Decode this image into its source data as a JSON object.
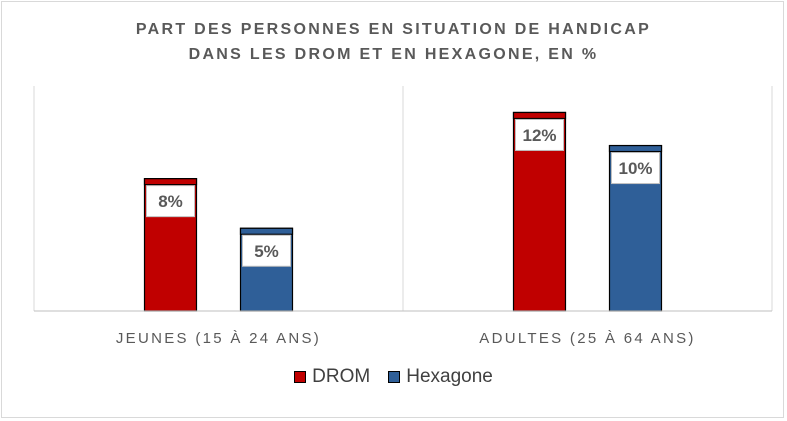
{
  "chart_data": {
    "type": "bar",
    "title": "PART DES PERSONNES EN SITUATION DE HANDICAP",
    "subtitle": "DANS LES DROM ET EN HEXAGONE, EN %",
    "categories": [
      "JEUNES (15 À 24 ANS)",
      "ADULTES (25 À 64 ANS)"
    ],
    "series": [
      {
        "name": "DROM",
        "values": [
          8,
          12
        ],
        "labels": [
          "8%",
          "12%"
        ],
        "color": "#C00000"
      },
      {
        "name": "Hexagone",
        "values": [
          5,
          10
        ],
        "labels": [
          "5%",
          "10%"
        ],
        "color": "#2F5F98"
      }
    ],
    "ylim": [
      0,
      13.6
    ],
    "grid": false,
    "legend_position": "bottom"
  }
}
